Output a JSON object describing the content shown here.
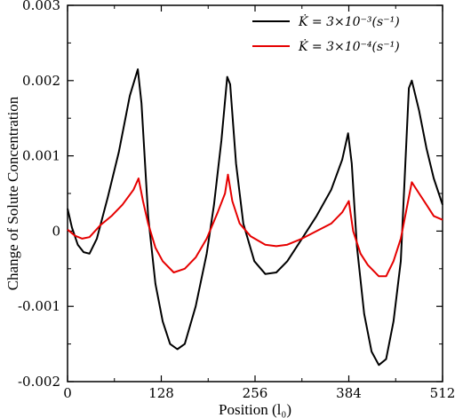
{
  "chart_data": {
    "type": "line",
    "xlabel": "Position",
    "xlabel_unit": "(l₀)",
    "ylabel": "Change of Solute Concentration",
    "xlim": [
      0,
      512
    ],
    "ylim": [
      -0.002,
      0.003
    ],
    "xticks": [
      "0",
      "128",
      "256",
      "384",
      "512"
    ],
    "xtick_values": [
      0,
      128,
      256,
      384,
      512
    ],
    "yticks": [
      "0.003",
      "0.002",
      "0.001",
      "0",
      "-0.001",
      "-0.002"
    ],
    "ytick_values": [
      0.003,
      0.002,
      0.001,
      0,
      -0.001,
      -0.002
    ],
    "grid": false,
    "legend_position": "top-right",
    "series": [
      {
        "name": "K̇ = 3×10⁻³(s⁻¹)",
        "color": "#000000",
        "x": [
          0,
          6,
          14,
          22,
          30,
          40,
          55,
          70,
          85,
          96,
          101,
          110,
          120,
          130,
          140,
          150,
          160,
          175,
          190,
          200,
          210,
          218,
          222,
          230,
          240,
          255,
          270,
          285,
          300,
          320,
          340,
          360,
          375,
          383,
          388,
          395,
          405,
          415,
          425,
          435,
          445,
          455,
          466,
          470,
          480,
          490,
          500,
          512
        ],
        "y": [
          0.0003,
          5e-05,
          -0.00018,
          -0.00028,
          -0.0003,
          -0.0001,
          0.00045,
          0.00105,
          0.0018,
          0.00215,
          0.0017,
          0.0002,
          -0.0007,
          -0.0012,
          -0.0015,
          -0.00157,
          -0.0015,
          -0.001,
          -0.0003,
          0.00035,
          0.0012,
          0.00205,
          0.00195,
          0.0009,
          0.0001,
          -0.0004,
          -0.00057,
          -0.00055,
          -0.0004,
          -0.0001,
          0.0002,
          0.00055,
          0.00095,
          0.0013,
          0.0009,
          -0.0002,
          -0.0011,
          -0.0016,
          -0.00178,
          -0.0017,
          -0.0012,
          -0.0004,
          0.0019,
          0.002,
          0.0016,
          0.0011,
          0.0007,
          0.00035
        ]
      },
      {
        "name": "K̇ = 3×10⁻⁴(s⁻¹)",
        "color": "#e60000",
        "x": [
          0,
          10,
          20,
          30,
          45,
          60,
          75,
          90,
          97,
          103,
          110,
          120,
          130,
          145,
          160,
          175,
          190,
          205,
          215,
          219,
          225,
          235,
          250,
          270,
          285,
          300,
          320,
          340,
          360,
          375,
          384,
          390,
          400,
          410,
          425,
          435,
          445,
          455,
          466,
          470,
          480,
          490,
          500,
          512
        ],
        "y": [
          2e-05,
          -6e-05,
          -0.0001,
          -8e-05,
          8e-05,
          0.0002,
          0.00035,
          0.00055,
          0.0007,
          0.0004,
          0.0001,
          -0.00022,
          -0.0004,
          -0.00055,
          -0.0005,
          -0.00035,
          -0.0001,
          0.00025,
          0.0005,
          0.00075,
          0.0004,
          0.0001,
          -7e-05,
          -0.00018,
          -0.0002,
          -0.00018,
          -0.0001,
          0.0,
          0.0001,
          0.00025,
          0.0004,
          0.0,
          -0.0003,
          -0.00045,
          -0.0006,
          -0.0006,
          -0.0004,
          -0.0001,
          0.00045,
          0.00065,
          0.0005,
          0.00035,
          0.0002,
          0.00015
        ]
      }
    ]
  },
  "legend": {
    "series1_label": "K̇ = 3×10⁻³(s⁻¹)",
    "series2_label": "K̇ = 3×10⁻⁴(s⁻¹)"
  }
}
